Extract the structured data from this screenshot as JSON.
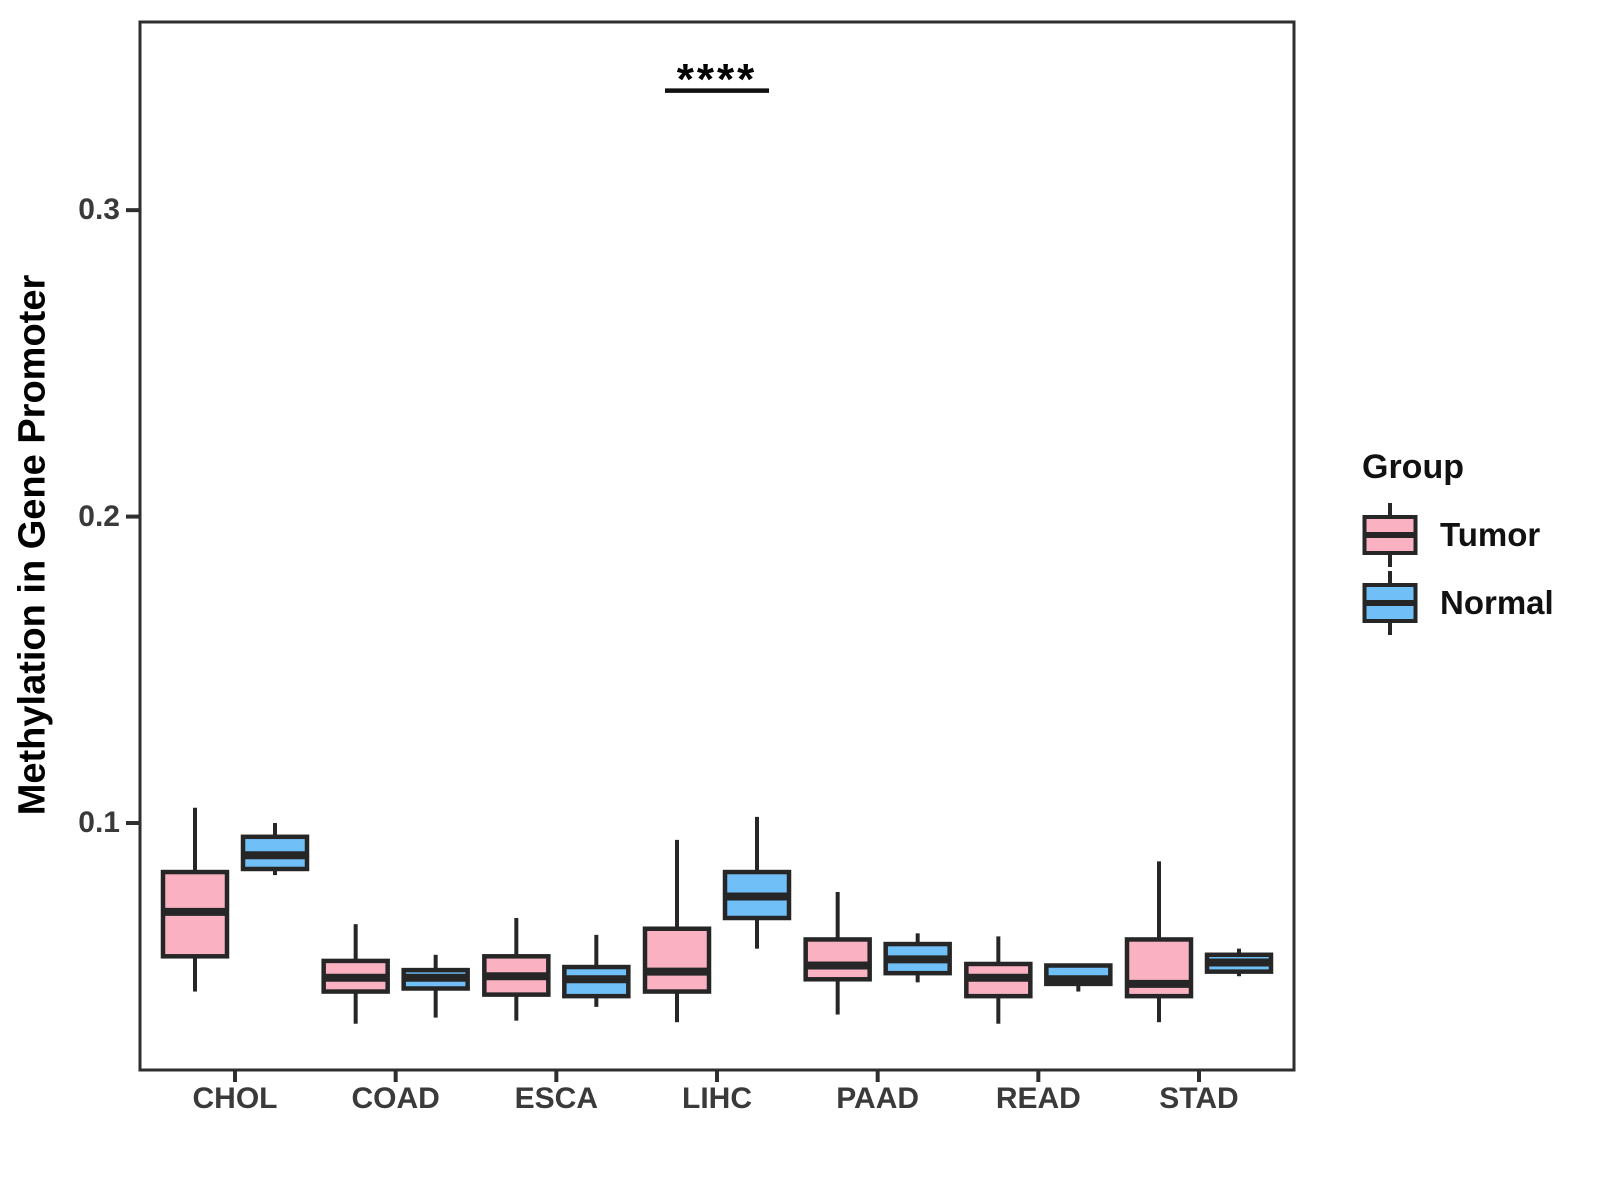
{
  "chart_data": {
    "type": "boxplot",
    "title": "",
    "xlabel": "",
    "ylabel": "Methylation in Gene Promoter",
    "categories": [
      "CHOL",
      "COAD",
      "ESCA",
      "LIHC",
      "PAAD",
      "READ",
      "STAD"
    ],
    "y_ticks": [
      "0.1",
      "0.2",
      "0.3"
    ],
    "y_tick_values": [
      0.1,
      0.2,
      0.3
    ],
    "ylim": [
      0.0194,
      0.3614
    ],
    "grid": false,
    "legend": {
      "title": "Group",
      "position": "right"
    },
    "groups": [
      {
        "name": "Tumor",
        "fill": "#FAB2C3"
      },
      {
        "name": "Normal",
        "fill": "#70BFF6"
      }
    ],
    "series": [
      {
        "name": "Tumor",
        "boxes": [
          {
            "cat": "CHOL",
            "whisker_low": 0.045,
            "q1": 0.0565,
            "median": 0.071,
            "q3": 0.084,
            "whisker_high": 0.105
          },
          {
            "cat": "COAD",
            "whisker_low": 0.0345,
            "q1": 0.045,
            "median": 0.0495,
            "q3": 0.055,
            "whisker_high": 0.067
          },
          {
            "cat": "ESCA",
            "whisker_low": 0.0355,
            "q1": 0.044,
            "median": 0.05,
            "q3": 0.0565,
            "whisker_high": 0.069
          },
          {
            "cat": "LIHC",
            "whisker_low": 0.035,
            "q1": 0.045,
            "median": 0.0515,
            "q3": 0.0655,
            "whisker_high": 0.0945
          },
          {
            "cat": "PAAD",
            "whisker_low": 0.0375,
            "q1": 0.049,
            "median": 0.0535,
            "q3": 0.062,
            "whisker_high": 0.0775
          },
          {
            "cat": "READ",
            "whisker_low": 0.0345,
            "q1": 0.0435,
            "median": 0.0495,
            "q3": 0.054,
            "whisker_high": 0.063
          },
          {
            "cat": "STAD",
            "whisker_low": 0.035,
            "q1": 0.0435,
            "median": 0.0475,
            "q3": 0.062,
            "whisker_high": 0.0875
          }
        ]
      },
      {
        "name": "Normal",
        "boxes": [
          {
            "cat": "CHOL",
            "whisker_low": 0.083,
            "q1": 0.085,
            "median": 0.0895,
            "q3": 0.0955,
            "whisker_high": 0.1
          },
          {
            "cat": "COAD",
            "whisker_low": 0.0365,
            "q1": 0.046,
            "median": 0.0495,
            "q3": 0.052,
            "whisker_high": 0.057
          },
          {
            "cat": "ESCA",
            "whisker_low": 0.04,
            "q1": 0.0435,
            "median": 0.049,
            "q3": 0.053,
            "whisker_high": 0.0635
          },
          {
            "cat": "LIHC",
            "whisker_low": 0.059,
            "q1": 0.069,
            "median": 0.076,
            "q3": 0.084,
            "whisker_high": 0.102
          },
          {
            "cat": "PAAD",
            "whisker_low": 0.048,
            "q1": 0.051,
            "median": 0.0555,
            "q3": 0.0605,
            "whisker_high": 0.064
          },
          {
            "cat": "READ",
            "whisker_low": 0.045,
            "q1": 0.0475,
            "median": 0.049,
            "q3": 0.0535,
            "whisker_high": 0.0535
          },
          {
            "cat": "STAD",
            "whisker_low": 0.05,
            "q1": 0.0515,
            "median": 0.0545,
            "q3": 0.057,
            "whisker_high": 0.059
          }
        ]
      }
    ],
    "annotation": {
      "text": "****",
      "category": "LIHC",
      "line_y": 0.339,
      "text_y": 0.345
    }
  },
  "style": {
    "box_stroke": "#262626",
    "axis_stroke": "#2e2e2e",
    "tick_label_color": "#3a3a3a",
    "text_color": "#111111"
  }
}
